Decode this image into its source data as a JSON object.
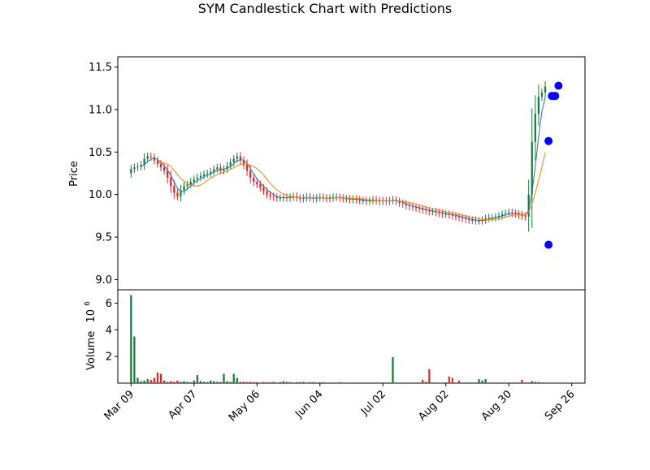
{
  "chart_data": {
    "type": "candlestick",
    "title": "SYM Candlestick Chart with Predictions",
    "price_panel": {
      "ylabel": "Price",
      "ylim": [
        8.88,
        11.62
      ],
      "yticks": [
        9.0,
        9.5,
        10.0,
        10.5,
        11.0,
        11.5
      ],
      "ytick_labels": [
        "9.0",
        "9.5",
        "10.0",
        "10.5",
        "11.0",
        "11.5"
      ],
      "up_color": "#1a7a3a",
      "down_color": "#e3262b",
      "ma_short_color": "#1f77b4",
      "ma_long_color": "#ff7f0e",
      "prediction_color": "#0000ff"
    },
    "volume_panel": {
      "ylabel": "Volume",
      "exponent_label": "10",
      "exponent_power": "6",
      "ylim": [
        0,
        7.0
      ],
      "yticks": [
        2,
        4,
        6
      ],
      "ytick_labels": [
        "2",
        "4",
        "6"
      ]
    },
    "x_axis": {
      "ticks": [
        {
          "label": "Mar 09",
          "index": 0
        },
        {
          "label": "Apr 07",
          "index": 19
        },
        {
          "label": "May 06",
          "index": 38
        },
        {
          "label": "Jun 04",
          "index": 57
        },
        {
          "label": "Jul 02",
          "index": 76
        },
        {
          "label": "Aug 02",
          "index": 95
        },
        {
          "label": "Aug 30",
          "index": 114
        },
        {
          "label": "Sep 26",
          "index": 133
        }
      ],
      "range": [
        -4,
        137
      ]
    },
    "closes": [
      10.3,
      10.32,
      10.33,
      10.35,
      10.42,
      10.45,
      10.44,
      10.4,
      10.36,
      10.32,
      10.28,
      10.2,
      10.1,
      10.02,
      9.98,
      10.05,
      10.1,
      10.12,
      10.15,
      10.18,
      10.2,
      10.22,
      10.24,
      10.25,
      10.27,
      10.3,
      10.32,
      10.28,
      10.3,
      10.34,
      10.38,
      10.42,
      10.45,
      10.4,
      10.35,
      10.28,
      10.2,
      10.15,
      10.12,
      10.08,
      10.04,
      10.0,
      9.98,
      9.97,
      9.96,
      9.96,
      9.97,
      9.96,
      9.97,
      9.98,
      9.96,
      9.95,
      9.96,
      9.97,
      9.96,
      9.95,
      9.96,
      9.97,
      9.96,
      9.95,
      9.96,
      9.97,
      9.97,
      9.96,
      9.95,
      9.95,
      9.94,
      9.95,
      9.94,
      9.93,
      9.93,
      9.92,
      9.93,
      9.94,
      9.93,
      9.92,
      9.93,
      9.92,
      9.93,
      9.94,
      9.92,
      9.9,
      9.89,
      9.87,
      9.86,
      9.85,
      9.84,
      9.83,
      9.82,
      9.81,
      9.8,
      9.8,
      9.79,
      9.78,
      9.77,
      9.77,
      9.76,
      9.75,
      9.74,
      9.73,
      9.72,
      9.71,
      9.7,
      9.7,
      9.69,
      9.69,
      9.7,
      9.72,
      9.73,
      9.73,
      9.74,
      9.75,
      9.77,
      9.78,
      9.79,
      9.78,
      9.77,
      9.76,
      9.75,
      9.74,
      10.0,
      10.62,
      10.95,
      11.15,
      11.2,
      11.27
    ],
    "volumes": [
      6.6,
      3.5,
      0.4,
      0.15,
      0.2,
      0.3,
      0.25,
      0.4,
      0.8,
      0.7,
      0.2,
      0.1,
      0.15,
      0.1,
      0.2,
      0.1,
      0.15,
      0.1,
      0.08,
      0.2,
      0.6,
      0.15,
      0.1,
      0.08,
      0.2,
      0.15,
      0.1,
      0.1,
      0.7,
      0.15,
      0.1,
      0.7,
      0.4,
      0.1,
      0.1,
      0.08,
      0.1,
      0.08,
      0.08,
      0.05,
      0.1,
      0.08,
      0.08,
      0.1,
      0.05,
      0.08,
      0.15,
      0.1,
      0.08,
      0.05,
      0.08,
      0.08,
      0.1,
      0.05,
      0.08,
      0.08,
      0.05,
      0.05,
      0.08,
      0.05,
      0.05,
      0.05,
      0.05,
      0.08,
      0.05,
      0.05,
      0.05,
      0.05,
      0.05,
      0.05,
      0.05,
      0.05,
      0.05,
      0.05,
      0.05,
      0.05,
      0.05,
      0.05,
      0.05,
      1.95,
      0.05,
      0.05,
      0.05,
      0.05,
      0.05,
      0.05,
      0.05,
      0.05,
      0.25,
      0.1,
      1.05,
      0.05,
      0.05,
      0.05,
      0.05,
      0.05,
      0.5,
      0.4,
      0.05,
      0.2,
      0.05,
      0.05,
      0.05,
      0.05,
      0.05,
      0.3,
      0.2,
      0.3,
      0.05,
      0.05,
      0.05,
      0.05,
      0.05,
      0.05,
      0.05,
      0.05,
      0.05,
      0.05,
      0.25,
      0.05,
      0.05,
      0.15,
      0.1,
      0.08,
      0.05,
      0.05
    ],
    "predictions": [
      {
        "index": 126,
        "value": 9.41
      },
      {
        "index": 126,
        "value": 10.63
      },
      {
        "index": 127,
        "value": 11.16
      },
      {
        "index": 128,
        "value": 11.16
      },
      {
        "index": 129,
        "value": 11.28
      }
    ]
  }
}
